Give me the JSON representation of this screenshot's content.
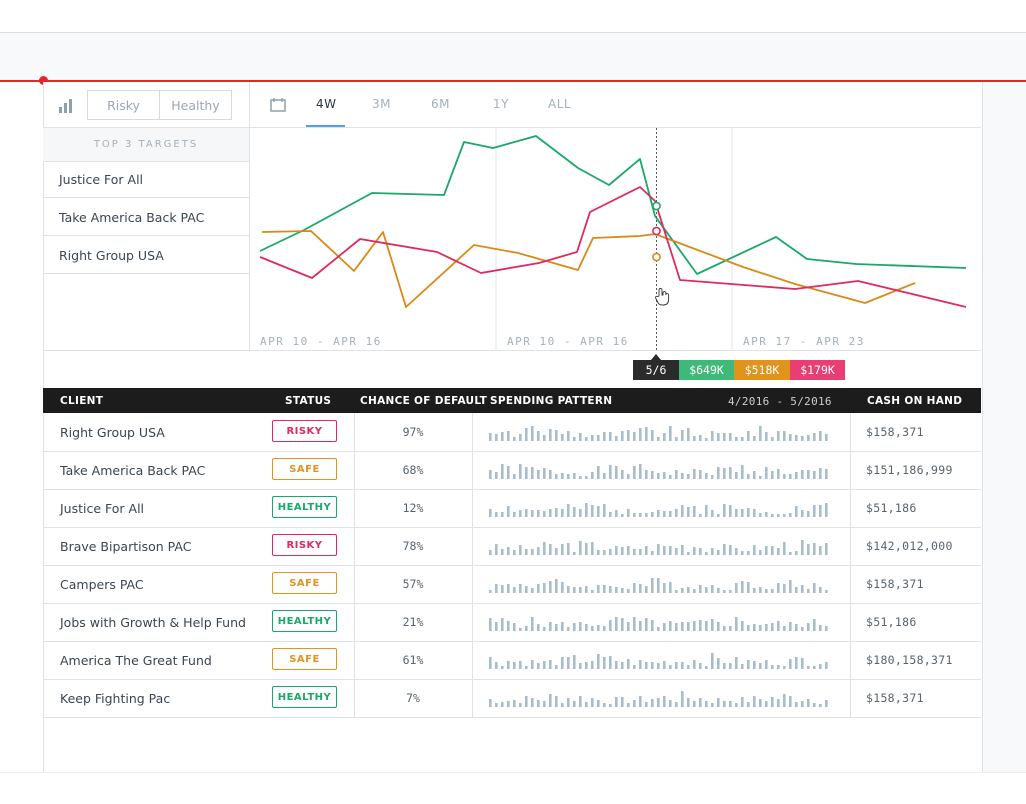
{
  "toolbar": {
    "filter_options": [
      "Risky",
      "Healthy"
    ],
    "tabs": [
      "4W",
      "3M",
      "6M",
      "1Y",
      "ALL"
    ],
    "active_tab": "4W"
  },
  "targets": {
    "header": "TOP 3 TARGETS",
    "items": [
      {
        "label": "Justice For All",
        "color": "#1aa86a"
      },
      {
        "label": "Take America Back PAC",
        "color": "#d98a16"
      },
      {
        "label": "Right Group USA",
        "color": "#e0295f"
      }
    ]
  },
  "chart_data": {
    "type": "line",
    "x_labels": [
      "APR 10 - APR 16",
      "APR 10 - APR 16",
      "APR 17 - APR 23"
    ],
    "series": [
      {
        "name": "Justice For All",
        "color": "#1aa86a",
        "values": [
          82,
          103,
          140,
          138,
          191,
          185,
          197,
          165,
          148,
          174,
          117,
          59,
          96,
          74,
          69,
          65
        ]
      },
      {
        "name": "Take America Back PAC",
        "color": "#d98a16",
        "values": [
          101,
          102,
          62,
          101,
          26,
          88,
          80,
          63,
          95,
          97,
          99,
          66,
          49,
          30,
          50
        ]
      },
      {
        "name": "Right Group USA",
        "color": "#e0295f",
        "values": [
          76,
          55,
          94,
          81,
          60,
          70,
          81,
          121,
          146,
          132,
          53,
          44,
          52,
          26
        ]
      }
    ],
    "cursor": {
      "label": "5/6",
      "values": [
        {
          "text": "$649K",
          "color": "#3fb97a"
        },
        {
          "text": "$518K",
          "color": "#e0941e"
        },
        {
          "text": "$179K",
          "color": "#ea3d73"
        }
      ]
    }
  },
  "table": {
    "headers": {
      "client": "CLIENT",
      "status": "STATUS",
      "chance": "CHANCE OF DEFAULT",
      "spending": "SPENDING PATTERN",
      "range": "4/2016 - 5/2016",
      "cash": "CASH ON HAND"
    },
    "status_colors": {
      "RISKY": "#e0295f",
      "SAFE": "#e0941e",
      "HEALTHY": "#1aa86a"
    },
    "rows": [
      {
        "client": "Right Group USA",
        "status": "RISKY",
        "chance": "97%",
        "cash": "$158,371"
      },
      {
        "client": "Take America Back PAC",
        "status": "SAFE",
        "chance": "68%",
        "cash": "$151,186,999"
      },
      {
        "client": "Justice For All",
        "status": "HEALTHY",
        "chance": "12%",
        "cash": "$51,186"
      },
      {
        "client": "Brave Bipartison PAC",
        "status": "RISKY",
        "chance": "78%",
        "cash": "$142,012,000"
      },
      {
        "client": "Campers PAC",
        "status": "SAFE",
        "chance": "57%",
        "cash": "$158,371"
      },
      {
        "client": "Jobs with Growth & Help Fund",
        "status": "HEALTHY",
        "chance": "21%",
        "cash": "$51,186"
      },
      {
        "client": "America The Great Fund",
        "status": "SAFE",
        "chance": "61%",
        "cash": "$180,158,371"
      },
      {
        "client": "Keep Fighting Pac",
        "status": "HEALTHY",
        "chance": "7%",
        "cash": "$158,371"
      }
    ]
  }
}
